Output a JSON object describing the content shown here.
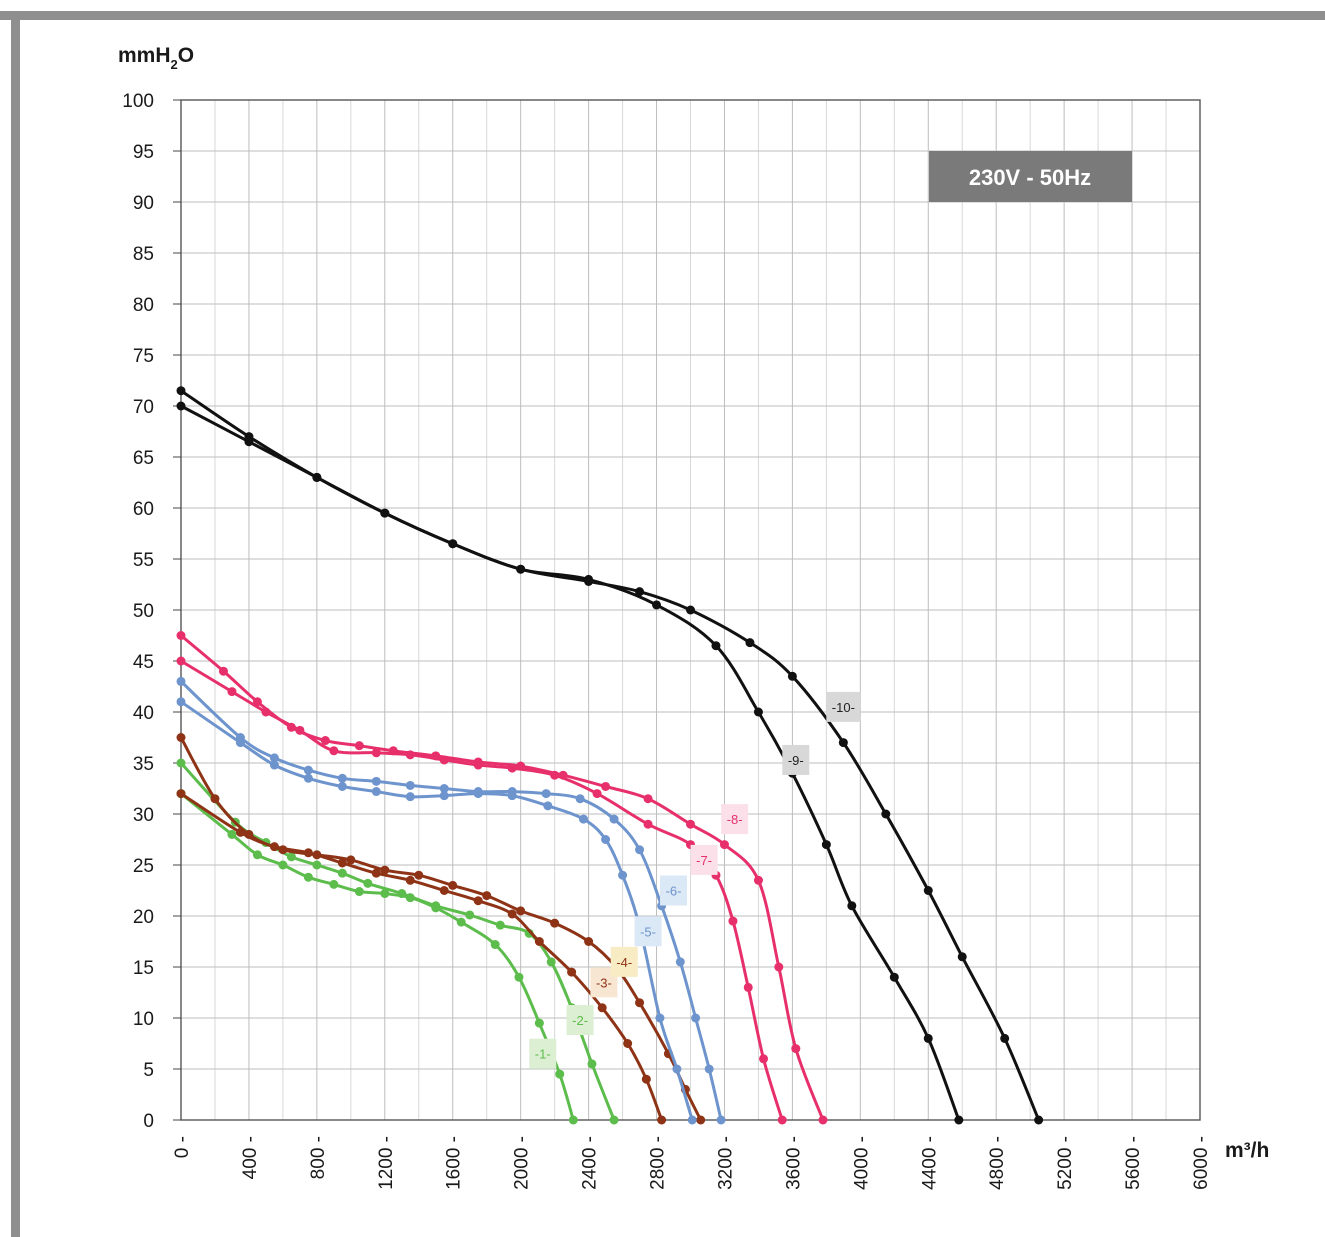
{
  "chart_data": {
    "type": "line",
    "ylabel_main": "mmH",
    "ylabel_sub": "2",
    "ylabel_tail": "O",
    "xlabel": "m³/h",
    "badge": "230V - 50Hz",
    "xlim": [
      0,
      6000
    ],
    "ylim": [
      0,
      100
    ],
    "xticks": [
      0,
      400,
      800,
      1200,
      1600,
      2000,
      2400,
      2800,
      3200,
      3600,
      4000,
      4400,
      4800,
      5200,
      5600,
      6000
    ],
    "yticks": [
      0,
      5,
      10,
      15,
      20,
      25,
      30,
      35,
      40,
      45,
      50,
      55,
      60,
      65,
      70,
      75,
      80,
      85,
      90,
      95,
      100
    ],
    "grid": true,
    "series": [
      {
        "name": "-1-",
        "color": "#5cbd4c",
        "label_bg": "#dcefd2",
        "label_xy": [
          2130,
          6.5
        ],
        "points": [
          [
            0,
            32
          ],
          [
            300,
            28
          ],
          [
            450,
            26
          ],
          [
            600,
            25
          ],
          [
            750,
            23.8
          ],
          [
            900,
            23.1
          ],
          [
            1050,
            22.4
          ],
          [
            1200,
            22.2
          ],
          [
            1350,
            21.8
          ],
          [
            1500,
            20.8
          ],
          [
            1650,
            19.4
          ],
          [
            1850,
            17.2
          ],
          [
            1990,
            14
          ],
          [
            2110,
            9.5
          ],
          [
            2230,
            4.5
          ],
          [
            2310,
            0
          ]
        ]
      },
      {
        "name": "-2-",
        "color": "#5cbd4c",
        "label_bg": "#dcefd2",
        "label_xy": [
          2350,
          9.8
        ],
        "points": [
          [
            0,
            35
          ],
          [
            320,
            29.2
          ],
          [
            500,
            27.2
          ],
          [
            650,
            25.8
          ],
          [
            800,
            25
          ],
          [
            950,
            24.2
          ],
          [
            1100,
            23.2
          ],
          [
            1300,
            22.2
          ],
          [
            1500,
            21
          ],
          [
            1700,
            20.1
          ],
          [
            1880,
            19.1
          ],
          [
            2050,
            18.3
          ],
          [
            2180,
            15.5
          ],
          [
            2300,
            11
          ],
          [
            2420,
            5.5
          ],
          [
            2550,
            0
          ]
        ]
      },
      {
        "name": "-3-",
        "color": "#8e3316",
        "label_bg": "#f7e6d2",
        "label_xy": [
          2490,
          13.5
        ],
        "points": [
          [
            0,
            32
          ],
          [
            350,
            28.2
          ],
          [
            550,
            26.8
          ],
          [
            750,
            26.2
          ],
          [
            950,
            25.2
          ],
          [
            1150,
            24.2
          ],
          [
            1350,
            23.5
          ],
          [
            1550,
            22.5
          ],
          [
            1750,
            21.5
          ],
          [
            1950,
            20.2
          ],
          [
            2110,
            17.5
          ],
          [
            2300,
            14.5
          ],
          [
            2480,
            11
          ],
          [
            2630,
            7.5
          ],
          [
            2740,
            4
          ],
          [
            2830,
            0
          ]
        ]
      },
      {
        "name": "-4-",
        "color": "#8e3316",
        "label_bg": "#f7ecc4",
        "label_xy": [
          2610,
          15.5
        ],
        "points": [
          [
            0,
            37.5
          ],
          [
            200,
            31.5
          ],
          [
            400,
            28
          ],
          [
            600,
            26.5
          ],
          [
            800,
            26
          ],
          [
            1000,
            25.5
          ],
          [
            1200,
            24.5
          ],
          [
            1400,
            24
          ],
          [
            1600,
            23
          ],
          [
            1800,
            22
          ],
          [
            2000,
            20.5
          ],
          [
            2200,
            19.3
          ],
          [
            2400,
            17.5
          ],
          [
            2560,
            15
          ],
          [
            2700,
            11.5
          ],
          [
            2870,
            6.5
          ],
          [
            2970,
            3
          ],
          [
            3060,
            0
          ]
        ]
      },
      {
        "name": "-5-",
        "color": "#6e94cd",
        "label_bg": "#dbe8f6",
        "label_xy": [
          2750,
          18.5
        ],
        "points": [
          [
            0,
            41
          ],
          [
            350,
            37
          ],
          [
            550,
            34.8
          ],
          [
            750,
            33.5
          ],
          [
            950,
            32.7
          ],
          [
            1150,
            32.2
          ],
          [
            1350,
            31.7
          ],
          [
            1550,
            31.8
          ],
          [
            1750,
            32
          ],
          [
            1950,
            31.8
          ],
          [
            2160,
            30.8
          ],
          [
            2370,
            29.5
          ],
          [
            2500,
            27.5
          ],
          [
            2600,
            24
          ],
          [
            2700,
            19
          ],
          [
            2820,
            10
          ],
          [
            2920,
            5
          ],
          [
            3010,
            0
          ]
        ]
      },
      {
        "name": "-6-",
        "color": "#6e94cd",
        "label_bg": "#dbe8f6",
        "label_xy": [
          2900,
          22.5
        ],
        "points": [
          [
            0,
            43
          ],
          [
            350,
            37.5
          ],
          [
            550,
            35.5
          ],
          [
            750,
            34.3
          ],
          [
            950,
            33.5
          ],
          [
            1150,
            33.2
          ],
          [
            1350,
            32.8
          ],
          [
            1550,
            32.5
          ],
          [
            1750,
            32.2
          ],
          [
            1950,
            32.2
          ],
          [
            2150,
            32
          ],
          [
            2350,
            31.5
          ],
          [
            2550,
            29.5
          ],
          [
            2700,
            26.5
          ],
          [
            2830,
            21
          ],
          [
            2940,
            15.5
          ],
          [
            3030,
            10
          ],
          [
            3110,
            5
          ],
          [
            3180,
            0
          ]
        ]
      },
      {
        "name": "-7-",
        "color": "#e7306b",
        "label_bg": "#fbe0ea",
        "label_xy": [
          3080,
          25.5
        ],
        "points": [
          [
            0,
            45
          ],
          [
            300,
            42
          ],
          [
            500,
            40
          ],
          [
            700,
            38.2
          ],
          [
            900,
            36.2
          ],
          [
            1150,
            36
          ],
          [
            1350,
            35.8
          ],
          [
            1550,
            35.3
          ],
          [
            1750,
            34.8
          ],
          [
            1950,
            34.5
          ],
          [
            2200,
            33.8
          ],
          [
            2450,
            32
          ],
          [
            2750,
            29
          ],
          [
            3000,
            27
          ],
          [
            3150,
            24
          ],
          [
            3250,
            19.5
          ],
          [
            3340,
            13
          ],
          [
            3430,
            6
          ],
          [
            3540,
            0
          ]
        ]
      },
      {
        "name": "-8-",
        "color": "#e7306b",
        "label_bg": "#fbe0ea",
        "label_xy": [
          3260,
          29.5
        ],
        "points": [
          [
            0,
            47.5
          ],
          [
            250,
            44
          ],
          [
            450,
            41
          ],
          [
            650,
            38.5
          ],
          [
            850,
            37.2
          ],
          [
            1050,
            36.7
          ],
          [
            1250,
            36.2
          ],
          [
            1500,
            35.7
          ],
          [
            1750,
            35.1
          ],
          [
            2000,
            34.7
          ],
          [
            2250,
            33.8
          ],
          [
            2500,
            32.7
          ],
          [
            2750,
            31.5
          ],
          [
            3000,
            29
          ],
          [
            3200,
            27
          ],
          [
            3400,
            23.5
          ],
          [
            3520,
            15
          ],
          [
            3620,
            7
          ],
          [
            3780,
            0
          ]
        ]
      },
      {
        "name": "-9-",
        "color": "#111111",
        "label_bg": "#d8d8d8",
        "label_xy": [
          3620,
          35.3
        ],
        "points": [
          [
            0,
            70
          ],
          [
            400,
            66.5
          ],
          [
            800,
            63
          ],
          [
            1200,
            59.5
          ],
          [
            1600,
            56.5
          ],
          [
            2000,
            54
          ],
          [
            2400,
            53
          ],
          [
            2800,
            50.5
          ],
          [
            3150,
            46.5
          ],
          [
            3400,
            40
          ],
          [
            3600,
            34
          ],
          [
            3800,
            27
          ],
          [
            3950,
            21
          ],
          [
            4200,
            14
          ],
          [
            4400,
            8
          ],
          [
            4580,
            0
          ]
        ]
      },
      {
        "name": "-10-",
        "color": "#111111",
        "label_bg": "#d8d8d8",
        "label_xy": [
          3900,
          40.5
        ],
        "points": [
          [
            0,
            71.5
          ],
          [
            400,
            67
          ],
          [
            800,
            63
          ],
          [
            1200,
            59.5
          ],
          [
            1600,
            56.5
          ],
          [
            2000,
            54
          ],
          [
            2400,
            52.8
          ],
          [
            2700,
            51.8
          ],
          [
            3000,
            50
          ],
          [
            3350,
            46.8
          ],
          [
            3600,
            43.5
          ],
          [
            3900,
            37
          ],
          [
            4150,
            30
          ],
          [
            4400,
            22.5
          ],
          [
            4600,
            16
          ],
          [
            4850,
            8
          ],
          [
            5050,
            0
          ]
        ]
      }
    ]
  }
}
